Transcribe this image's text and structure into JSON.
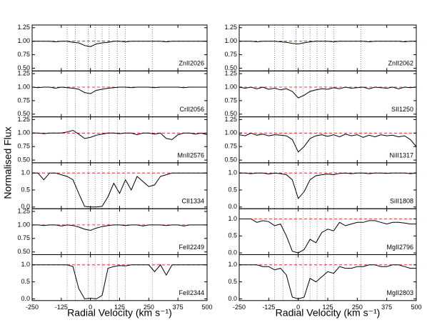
{
  "ylabel": "Normalised Flux",
  "components": [
    -100,
    -65,
    -10,
    20,
    50,
    80,
    115,
    150,
    265
  ],
  "chart_data": [
    {
      "type": "line",
      "label": "ZnII2026",
      "color": "#000000",
      "continuum": 1,
      "xlim": [
        -250,
        500
      ],
      "xticks": [
        -250,
        -125,
        0,
        125,
        250,
        375,
        500
      ],
      "ylim": [
        0.45,
        1.3
      ],
      "yticks": [
        {
          "value": 0.5,
          "label": "0.50"
        },
        0.75,
        {
          "value": 1,
          "label": "1.00"
        },
        1.25
      ],
      "x": [
        -250,
        -225,
        -200,
        -175,
        -150,
        -125,
        -100,
        -75,
        -50,
        -25,
        0,
        25,
        50,
        75,
        100,
        125,
        150,
        175,
        200,
        225,
        250,
        275,
        300,
        325,
        350,
        375,
        400,
        425,
        450,
        475,
        500
      ],
      "values": [
        1,
        1,
        1,
        1,
        0.99,
        1,
        1,
        0.98,
        0.97,
        0.92,
        0.9,
        0.95,
        0.97,
        0.98,
        1,
        1,
        0.99,
        1,
        1,
        1,
        1,
        1,
        1,
        0.99,
        1,
        1,
        1,
        1,
        1,
        1,
        1
      ]
    },
    {
      "type": "line",
      "label": "CrII2056",
      "color": "#000000",
      "continuum": 1,
      "xlim": [
        -250,
        500
      ],
      "xticks": [
        -250,
        -125,
        0,
        125,
        250,
        375,
        500
      ],
      "ylim": [
        0.45,
        1.3
      ],
      "yticks": [
        {
          "value": 0.5,
          "label": "0.50"
        },
        0.75,
        {
          "value": 1,
          "label": "1.00"
        },
        1.25
      ],
      "x": [
        -250,
        -225,
        -200,
        -175,
        -150,
        -125,
        -100,
        -75,
        -50,
        -25,
        0,
        25,
        50,
        75,
        100,
        125,
        150,
        175,
        200,
        225,
        250,
        275,
        300,
        325,
        350,
        375,
        400,
        425,
        450,
        475,
        500
      ],
      "values": [
        1,
        0.99,
        1,
        1,
        0.98,
        1,
        0.99,
        0.98,
        0.96,
        0.9,
        0.88,
        0.94,
        0.96,
        0.98,
        0.99,
        1,
        1,
        0.99,
        1,
        1,
        1,
        0.99,
        1,
        1,
        1,
        1,
        0.99,
        1,
        1,
        1,
        1
      ]
    },
    {
      "type": "line",
      "label": "MnII2576",
      "color": "#000000",
      "continuum": 1,
      "xlim": [
        -250,
        500
      ],
      "xticks": [
        -250,
        -125,
        0,
        125,
        250,
        375,
        500
      ],
      "ylim": [
        0.45,
        1.3
      ],
      "yticks": [
        {
          "value": 0.5,
          "label": "0.50"
        },
        0.75,
        {
          "value": 1,
          "label": "1.00"
        },
        1.25
      ],
      "x": [
        -250,
        -225,
        -200,
        -175,
        -150,
        -125,
        -100,
        -75,
        -50,
        -25,
        0,
        25,
        50,
        75,
        100,
        125,
        150,
        175,
        200,
        225,
        250,
        275,
        300,
        325,
        350,
        375,
        400,
        425,
        450,
        475,
        500
      ],
      "values": [
        1,
        1,
        0.99,
        1,
        1,
        1,
        1.02,
        1.05,
        0.98,
        0.9,
        0.92,
        0.96,
        0.98,
        1,
        1,
        0.99,
        1,
        1,
        0.97,
        1,
        1,
        0.98,
        1,
        0.9,
        0.88,
        0.97,
        1,
        1,
        0.98,
        1,
        0.97
      ]
    },
    {
      "type": "line",
      "label": "CII1334",
      "color": "#000000",
      "continuum": 1,
      "xlim": [
        -250,
        500
      ],
      "xticks": [
        -250,
        -125,
        0,
        125,
        250,
        375,
        500
      ],
      "ylim": [
        -0.05,
        1.3
      ],
      "yticks": [
        {
          "value": 0,
          "label": "0.0"
        },
        {
          "value": 0.5,
          "label": "0.5"
        },
        {
          "value": 1,
          "label": "1.0"
        }
      ],
      "x": [
        -250,
        -225,
        -200,
        -175,
        -150,
        -125,
        -100,
        -75,
        -50,
        -25,
        0,
        25,
        50,
        75,
        100,
        125,
        150,
        175,
        200,
        225,
        250,
        275,
        300,
        325,
        350,
        375,
        400,
        425,
        450,
        475,
        500
      ],
      "values": [
        1,
        1,
        0.8,
        1,
        1,
        0.95,
        0.9,
        0.8,
        0.4,
        0.02,
        0,
        0,
        0.02,
        0.3,
        0.7,
        0.4,
        0.8,
        0.5,
        0.9,
        0.75,
        0.6,
        0.65,
        0.9,
        0.95,
        1,
        1,
        1,
        1,
        1,
        1,
        1
      ]
    },
    {
      "type": "line",
      "label": "FeII2249",
      "color": "#000000",
      "continuum": 1,
      "xlim": [
        -250,
        500
      ],
      "xticks": [
        -250,
        -125,
        0,
        125,
        250,
        375,
        500
      ],
      "ylim": [
        0.45,
        1.3
      ],
      "yticks": [
        {
          "value": 0.5,
          "label": "0.50"
        },
        0.75,
        {
          "value": 1,
          "label": "1.00"
        },
        1.25
      ],
      "x": [
        -250,
        -225,
        -200,
        -175,
        -150,
        -125,
        -100,
        -75,
        -50,
        -25,
        0,
        25,
        50,
        75,
        100,
        125,
        150,
        175,
        200,
        225,
        250,
        275,
        300,
        325,
        350,
        375,
        400,
        425,
        450,
        475,
        500
      ],
      "values": [
        1,
        1,
        0.99,
        1,
        1,
        0.98,
        1,
        0.99,
        0.96,
        0.92,
        0.9,
        0.94,
        0.97,
        0.99,
        1,
        1,
        0.99,
        1,
        1,
        0.98,
        1,
        1,
        1,
        0.99,
        1,
        1,
        0.98,
        1,
        1,
        1,
        1
      ]
    },
    {
      "type": "line",
      "label": "FeII2344",
      "color": "#000000",
      "continuum": 1,
      "xlabel": "Radial Velocity (km s⁻¹)",
      "xlim": [
        -250,
        500
      ],
      "xticks": [
        -250,
        -125,
        0,
        125,
        250,
        375,
        500
      ],
      "ylim": [
        -0.05,
        1.3
      ],
      "yticks": [
        {
          "value": 0,
          "label": "0.0"
        },
        {
          "value": 0.5,
          "label": "0.5"
        },
        {
          "value": 1,
          "label": "1.0"
        }
      ],
      "x": [
        -250,
        -225,
        -200,
        -175,
        -150,
        -125,
        -100,
        -75,
        -50,
        -25,
        0,
        25,
        50,
        75,
        100,
        125,
        150,
        175,
        200,
        225,
        250,
        275,
        300,
        325,
        350,
        375,
        400,
        425,
        450,
        475,
        500
      ],
      "values": [
        1,
        1,
        1,
        1,
        1,
        1,
        1,
        0.95,
        0.3,
        0,
        0.02,
        0,
        0.1,
        0.9,
        0.95,
        0.98,
        0.97,
        1,
        1,
        1,
        1,
        0.8,
        1,
        0.7,
        1,
        1,
        1,
        1,
        1,
        1,
        1
      ]
    },
    {
      "type": "line",
      "label": "ZnII2062",
      "color": "#000000",
      "continuum": 1,
      "xlim": [
        -250,
        500
      ],
      "xticks": [
        -250,
        -125,
        0,
        125,
        250,
        375,
        500
      ],
      "ylim": [
        0.45,
        1.3
      ],
      "yticks": [
        {
          "value": 0.5,
          "label": "0.50"
        },
        0.75,
        {
          "value": 1,
          "label": "1.00"
        },
        1.25
      ],
      "x": [
        -250,
        -225,
        -200,
        -175,
        -150,
        -125,
        -100,
        -75,
        -50,
        -25,
        0,
        25,
        50,
        75,
        100,
        125,
        150,
        175,
        200,
        225,
        250,
        275,
        300,
        325,
        350,
        375,
        400,
        425,
        450,
        475,
        500
      ],
      "values": [
        1,
        1,
        1,
        0.99,
        1,
        1,
        1,
        0.99,
        0.98,
        0.96,
        0.95,
        0.97,
        0.99,
        1,
        1,
        1,
        0.99,
        1,
        1,
        1,
        1,
        1,
        0.99,
        1,
        1,
        1,
        1,
        1,
        0.99,
        1,
        1
      ]
    },
    {
      "type": "line",
      "label": "SII1250",
      "color": "#000000",
      "continuum": 1,
      "xlim": [
        -250,
        500
      ],
      "xticks": [
        -250,
        -125,
        0,
        125,
        250,
        375,
        500
      ],
      "ylim": [
        0.45,
        1.3
      ],
      "yticks": [
        {
          "value": 0.5,
          "label": "0.50"
        },
        0.75,
        {
          "value": 1,
          "label": "1.00"
        },
        1.25
      ],
      "x": [
        -250,
        -225,
        -200,
        -175,
        -150,
        -125,
        -100,
        -75,
        -50,
        -25,
        0,
        25,
        50,
        75,
        100,
        125,
        150,
        175,
        200,
        225,
        250,
        275,
        300,
        325,
        350,
        375,
        400,
        425,
        450,
        475,
        500
      ],
      "values": [
        1,
        0.98,
        1,
        0.97,
        1,
        0.96,
        0.98,
        0.95,
        0.97,
        0.92,
        0.8,
        0.85,
        0.92,
        0.95,
        0.97,
        0.96,
        0.99,
        0.97,
        1,
        0.98,
        0.99,
        1,
        0.97,
        1,
        0.99,
        0.98,
        1,
        0.97,
        1,
        0.99,
        1
      ]
    },
    {
      "type": "line",
      "label": "NiII1317",
      "color": "#000000",
      "continuum": 1,
      "xlim": [
        -250,
        500
      ],
      "xticks": [
        -250,
        -125,
        0,
        125,
        250,
        375,
        500
      ],
      "ylim": [
        0.45,
        1.3
      ],
      "yticks": [
        {
          "value": 0.5,
          "label": "0.50"
        },
        0.75,
        {
          "value": 1,
          "label": "1.00"
        },
        1.25
      ],
      "x": [
        -250,
        -225,
        -200,
        -175,
        -150,
        -125,
        -100,
        -75,
        -50,
        -25,
        0,
        25,
        50,
        75,
        100,
        125,
        150,
        175,
        200,
        225,
        250,
        275,
        300,
        325,
        350,
        375,
        400,
        425,
        450,
        475,
        500
      ],
      "values": [
        0.97,
        0.95,
        1,
        0.96,
        0.98,
        0.95,
        0.97,
        0.96,
        0.95,
        0.88,
        0.65,
        0.75,
        0.9,
        0.95,
        0.97,
        0.94,
        0.97,
        0.93,
        0.98,
        0.95,
        0.97,
        0.92,
        0.96,
        0.93,
        0.97,
        0.95,
        0.96,
        0.93,
        0.95,
        0.88,
        0.75
      ]
    },
    {
      "type": "line",
      "label": "SiII1808",
      "color": "#000000",
      "continuum": 1,
      "xlim": [
        -250,
        500
      ],
      "xticks": [
        -250,
        -125,
        0,
        125,
        250,
        375,
        500
      ],
      "ylim": [
        -0.05,
        1.3
      ],
      "yticks": [
        {
          "value": 0,
          "label": "0.0"
        },
        {
          "value": 0.5,
          "label": "0.5"
        },
        {
          "value": 1,
          "label": "1.0"
        }
      ],
      "x": [
        -250,
        -225,
        -200,
        -175,
        -150,
        -125,
        -100,
        -75,
        -50,
        -25,
        0,
        25,
        50,
        75,
        100,
        125,
        150,
        175,
        200,
        225,
        250,
        275,
        300,
        325,
        350,
        375,
        400,
        425,
        450,
        475,
        500
      ],
      "values": [
        1,
        1,
        0.98,
        1,
        1,
        0.97,
        1,
        0.98,
        0.95,
        0.8,
        0.25,
        0.45,
        0.8,
        0.92,
        0.95,
        0.97,
        0.95,
        0.99,
        1,
        0.98,
        1,
        1,
        0.98,
        1,
        1,
        0.99,
        1,
        1,
        1,
        0.98,
        1
      ]
    },
    {
      "type": "line",
      "label": "MgII2796",
      "color": "#000000",
      "continuum": 1,
      "xlim": [
        -250,
        500
      ],
      "xticks": [
        -250,
        -125,
        0,
        125,
        250,
        375,
        500
      ],
      "ylim": [
        -0.05,
        1.3
      ],
      "yticks": [
        {
          "value": 0,
          "label": "0.0"
        },
        {
          "value": 0.5,
          "label": "0.5"
        },
        {
          "value": 1,
          "label": "1.0"
        }
      ],
      "x": [
        -250,
        -225,
        -200,
        -175,
        -150,
        -125,
        -100,
        -75,
        -50,
        -25,
        0,
        25,
        50,
        75,
        100,
        125,
        150,
        175,
        200,
        225,
        250,
        275,
        300,
        325,
        350,
        375,
        400,
        425,
        450,
        475,
        500
      ],
      "values": [
        1,
        1,
        1,
        0.9,
        0.95,
        0.92,
        0.8,
        0.85,
        0.5,
        0.05,
        0,
        0.1,
        0.4,
        0.3,
        0.6,
        0.7,
        0.65,
        0.9,
        0.8,
        0.85,
        0.9,
        0.9,
        0.95,
        0.95,
        0.9,
        0.85,
        0.9,
        0.9,
        0.88,
        0.85,
        0.85
      ]
    },
    {
      "type": "line",
      "label": "MgII2803",
      "color": "#000000",
      "continuum": 1,
      "xlabel": "Radial Velocity (km s⁻¹)",
      "xlim": [
        -250,
        500
      ],
      "xticks": [
        -250,
        -125,
        0,
        125,
        250,
        375,
        500
      ],
      "ylim": [
        -0.05,
        1.3
      ],
      "yticks": [
        {
          "value": 0,
          "label": "0.0"
        },
        {
          "value": 0.5,
          "label": "0.5"
        },
        {
          "value": 1,
          "label": "1.0"
        }
      ],
      "x": [
        -250,
        -225,
        -200,
        -175,
        -150,
        -125,
        -100,
        -75,
        -50,
        -25,
        0,
        25,
        50,
        75,
        100,
        125,
        150,
        175,
        200,
        225,
        250,
        275,
        300,
        325,
        350,
        375,
        400,
        425,
        450,
        475,
        500
      ],
      "values": [
        1,
        1,
        1,
        1,
        0.95,
        0.95,
        0.85,
        0.9,
        0.7,
        0.05,
        0,
        0.05,
        0.6,
        0.5,
        0.65,
        0.8,
        0.75,
        0.95,
        0.9,
        0.9,
        0.95,
        0.95,
        1,
        1,
        0.95,
        0.95,
        1,
        1,
        0.95,
        0.9,
        0.9
      ]
    }
  ]
}
